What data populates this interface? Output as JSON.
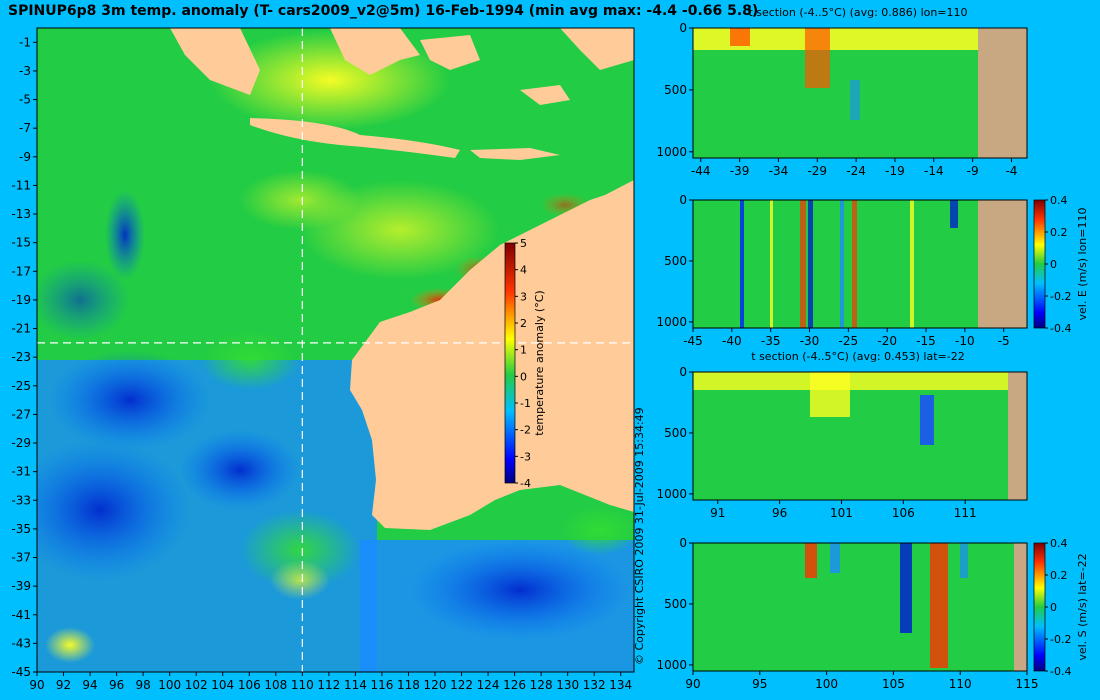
{
  "title": "SPINUP6p8 3m temp. anomaly (T- cars2009_v2@5m) 16-Feb-1994 (min avg max: -4.4 -0.66 5.8)",
  "copyright": "© Copyright CSIRO 2009  31-Jul-2009 15:34:49",
  "colors": {
    "background": "#00bfff",
    "land_map": "#ffcc99",
    "land_section": "#c8a882",
    "ocean_green": "#22cc44"
  },
  "chart_data": [
    {
      "type": "heatmap",
      "name": "temperature anomaly map",
      "x": {
        "range": [
          90,
          135
        ],
        "ticks": [
          "90",
          "92",
          "94",
          "96",
          "98",
          "100",
          "102",
          "104",
          "106",
          "108",
          "110",
          "112",
          "114",
          "116",
          "118",
          "120",
          "122",
          "124",
          "126",
          "128",
          "130",
          "132",
          "134"
        ]
      },
      "y": {
        "range": [
          -45,
          0
        ],
        "ticks": [
          "-1",
          "-3",
          "-5",
          "-7",
          "-9",
          "-11",
          "-13",
          "-15",
          "-17",
          "-19",
          "-21",
          "-23",
          "-25",
          "-27",
          "-29",
          "-31",
          "-33",
          "-35",
          "-37",
          "-39",
          "-41",
          "-43",
          "-45"
        ]
      },
      "colorbar": {
        "label": "temperature anomaly (°C)",
        "range": [
          -4,
          5
        ],
        "ticks": [
          "5",
          "4",
          "3",
          "2",
          "1",
          "0",
          "-1",
          "-2",
          "-3",
          "-4"
        ]
      },
      "section_lines": {
        "lon": 110,
        "lat": -22
      }
    },
    {
      "type": "heatmap",
      "name": "t section lon=110",
      "title": "t section (-4..5°C) (avg: 0.886) lon=110",
      "x": {
        "range": [
          -45,
          -2
        ],
        "ticks": [
          "-44",
          "-39",
          "-34",
          "-29",
          "-24",
          "-19",
          "-14",
          "-9",
          "-4"
        ]
      },
      "y": {
        "range": [
          0,
          1050
        ],
        "ticks": [
          "0",
          "500",
          "1000"
        ]
      }
    },
    {
      "type": "heatmap",
      "name": "vel E section lon=110",
      "x": {
        "range": [
          -45,
          -2
        ],
        "ticks": [
          "-45",
          "-40",
          "-35",
          "-30",
          "-25",
          "-20",
          "-15",
          "-10",
          "-5"
        ]
      },
      "y": {
        "range": [
          0,
          1050
        ],
        "ticks": [
          "0",
          "500",
          "1000"
        ]
      },
      "colorbar": {
        "label": "vel. E (m/s) lon=110",
        "range": [
          -0.4,
          0.4
        ],
        "ticks": [
          "0.4",
          "0.2",
          "0",
          "-0.2",
          "-0.4"
        ]
      }
    },
    {
      "type": "heatmap",
      "name": "t section lat=-22",
      "title": "t section (-4..5°C) (avg: 0.453) lat=-22",
      "x": {
        "range": [
          89,
          116
        ],
        "ticks": [
          "91",
          "96",
          "101",
          "106",
          "111"
        ]
      },
      "y": {
        "range": [
          0,
          1050
        ],
        "ticks": [
          "0",
          "500",
          "1000"
        ]
      }
    },
    {
      "type": "heatmap",
      "name": "vel S section lat=-22",
      "x": {
        "range": [
          90,
          115
        ],
        "ticks": [
          "90",
          "95",
          "100",
          "105",
          "110",
          "115"
        ]
      },
      "y": {
        "range": [
          0,
          1050
        ],
        "ticks": [
          "0",
          "500",
          "1000"
        ]
      },
      "colorbar": {
        "label": "vel. S (m/s) lat=-22",
        "range": [
          -0.4,
          0.4
        ],
        "ticks": [
          "0.4",
          "0.2",
          "0",
          "-0.2",
          "-0.4"
        ]
      }
    }
  ]
}
